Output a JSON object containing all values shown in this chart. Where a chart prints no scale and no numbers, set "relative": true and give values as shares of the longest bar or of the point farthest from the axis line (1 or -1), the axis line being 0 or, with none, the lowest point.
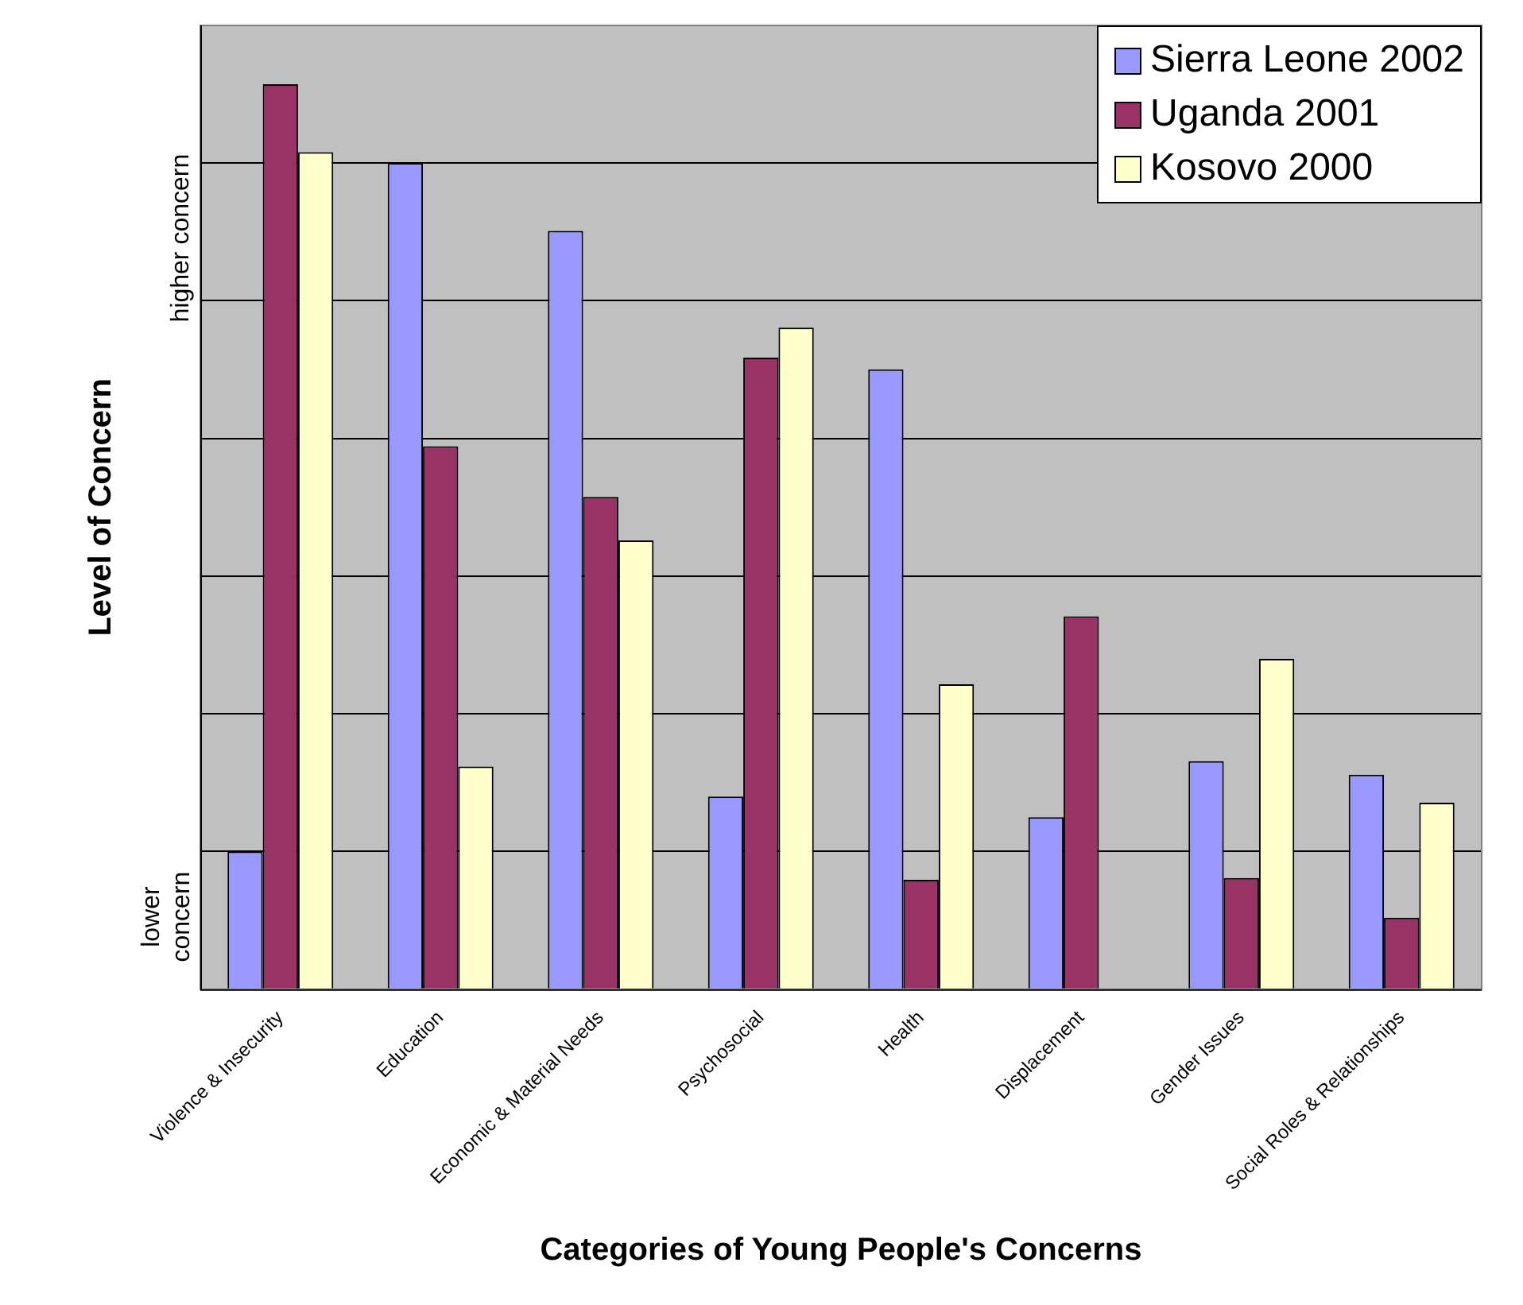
{
  "chart_data": {
    "type": "bar",
    "relative": true,
    "xlabel": "Categories of Young People's Concerns",
    "ylabel": "Level of Concern",
    "annotations": [
      "higher concern",
      "lower concern"
    ],
    "categories": [
      "Violence & Insecurity",
      "Education",
      "Economic & Material Needs",
      "Psychosocial",
      "Health",
      "Displacement",
      "Gender Issues",
      "Social Roles & Relationships"
    ],
    "series": [
      {
        "name": "Sierra Leone 2002",
        "color": "#9999ff",
        "values": [
          0.152,
          0.913,
          0.838,
          0.213,
          0.685,
          0.19,
          0.252,
          0.237
        ]
      },
      {
        "name": "Uganda 2001",
        "color": "#993366",
        "values": [
          1,
          0.6,
          0.544,
          0.698,
          0.121,
          0.412,
          0.123,
          0.079
        ]
      },
      {
        "name": "Kosovo 2000",
        "color": "#ffffcc",
        "values": [
          0.925,
          0.246,
          0.496,
          0.731,
          0.337,
          null,
          0.365,
          0.206
        ]
      }
    ],
    "grid": "y",
    "legend": "top right"
  }
}
